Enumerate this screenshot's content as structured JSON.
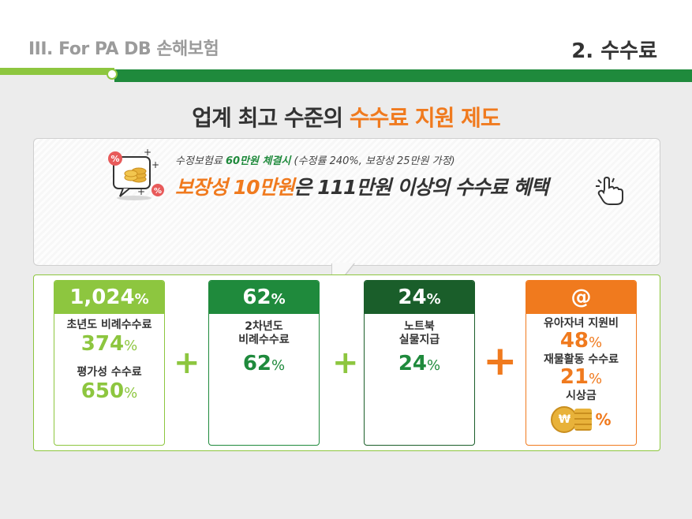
{
  "header": {
    "section_label": "III. For PA DB 손해보험",
    "page_title": "2. 수수료"
  },
  "headline": {
    "prefix": "업계 최고 수준의 ",
    "highlight": "수수료 지원 제도"
  },
  "callout": {
    "sub_prefix": "수정보험료 ",
    "sub_highlight": "60만원 체결시",
    "sub_suffix": " (수정률 240%, 보장성 25만원 가정)",
    "main_highlight": "보장성 10만원",
    "main_suffix": "은 111만원 이상의 수수료 혜택",
    "icon": "calculator-coins-icon",
    "pointer_icon": "pointing-hand-icon"
  },
  "cards": [
    {
      "header_value": "1,024",
      "header_unit": "%",
      "items": [
        {
          "label": "초년도 비례수수료",
          "value": "374",
          "unit": "%"
        },
        {
          "label": "평가성 수수료",
          "value": "650",
          "unit": "%"
        }
      ]
    },
    {
      "header_value": "62",
      "header_unit": "%",
      "items": [
        {
          "label_lines": [
            "2차년도",
            "비례수수료"
          ],
          "value": "62",
          "unit": "%"
        }
      ]
    },
    {
      "header_value": "24",
      "header_unit": "%",
      "items": [
        {
          "label_lines": [
            "노트북",
            "실물지급"
          ],
          "value": "24",
          "unit": "%"
        }
      ]
    },
    {
      "header_value": "@",
      "items": [
        {
          "label": "유아자녀 지원비",
          "value": "48",
          "unit": "%"
        },
        {
          "label": "재물활동 수수료",
          "value": "21",
          "unit": "%"
        },
        {
          "label": "시상금",
          "unit": "%",
          "icon": "coin-icon",
          "coin_symbol": "₩"
        }
      ]
    }
  ],
  "operators": [
    "+",
    "+",
    "+"
  ],
  "colors": {
    "light_green": "#8dc63f",
    "green": "#1f8a3c",
    "dark_green": "#1a5e2a",
    "orange": "#f07a1e"
  }
}
